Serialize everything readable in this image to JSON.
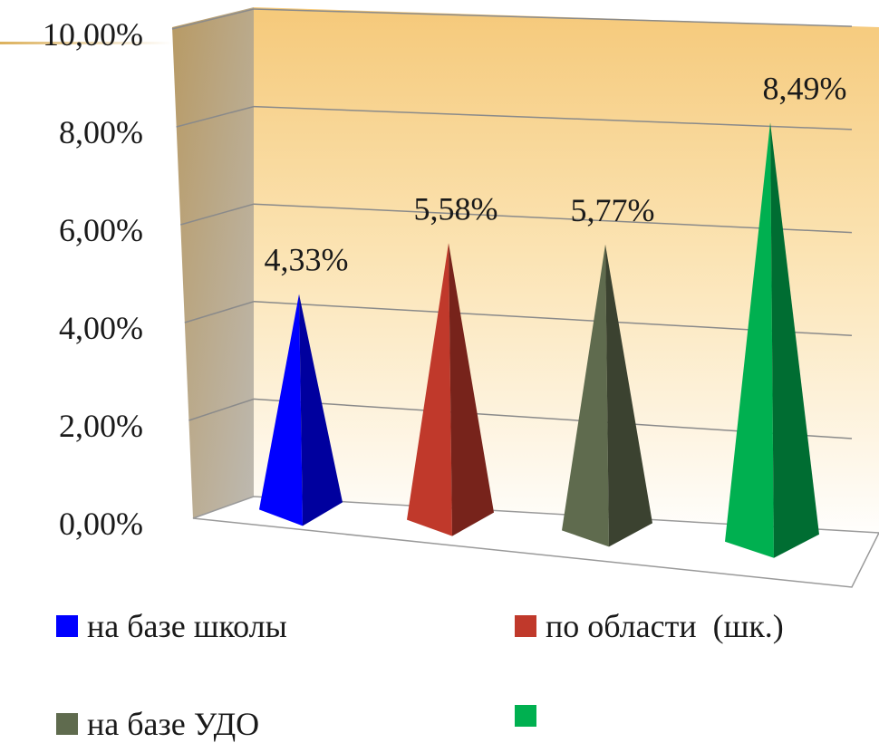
{
  "chart_data": {
    "type": "bar",
    "bar_shape": "pyramid",
    "three_d": true,
    "categories": [
      "на базе школы",
      "по области  (шк.)",
      "на базе УДО",
      ""
    ],
    "values": [
      4.33,
      5.58,
      5.77,
      8.49
    ],
    "data_labels": [
      "4,33%",
      "5,58%",
      "5,77%",
      "8,49%"
    ],
    "colors": [
      "#0000ff",
      "#c0392b",
      "#5f6b4e",
      "#00b050"
    ],
    "y_ticks": [
      "0,00%",
      "2,00%",
      "4,00%",
      "6,00%",
      "8,00%",
      "10,00%"
    ],
    "ylim": [
      0,
      10
    ],
    "y_unit": "%",
    "grid": true,
    "legend_position": "bottom",
    "title": "",
    "xlabel": "",
    "ylabel": ""
  }
}
